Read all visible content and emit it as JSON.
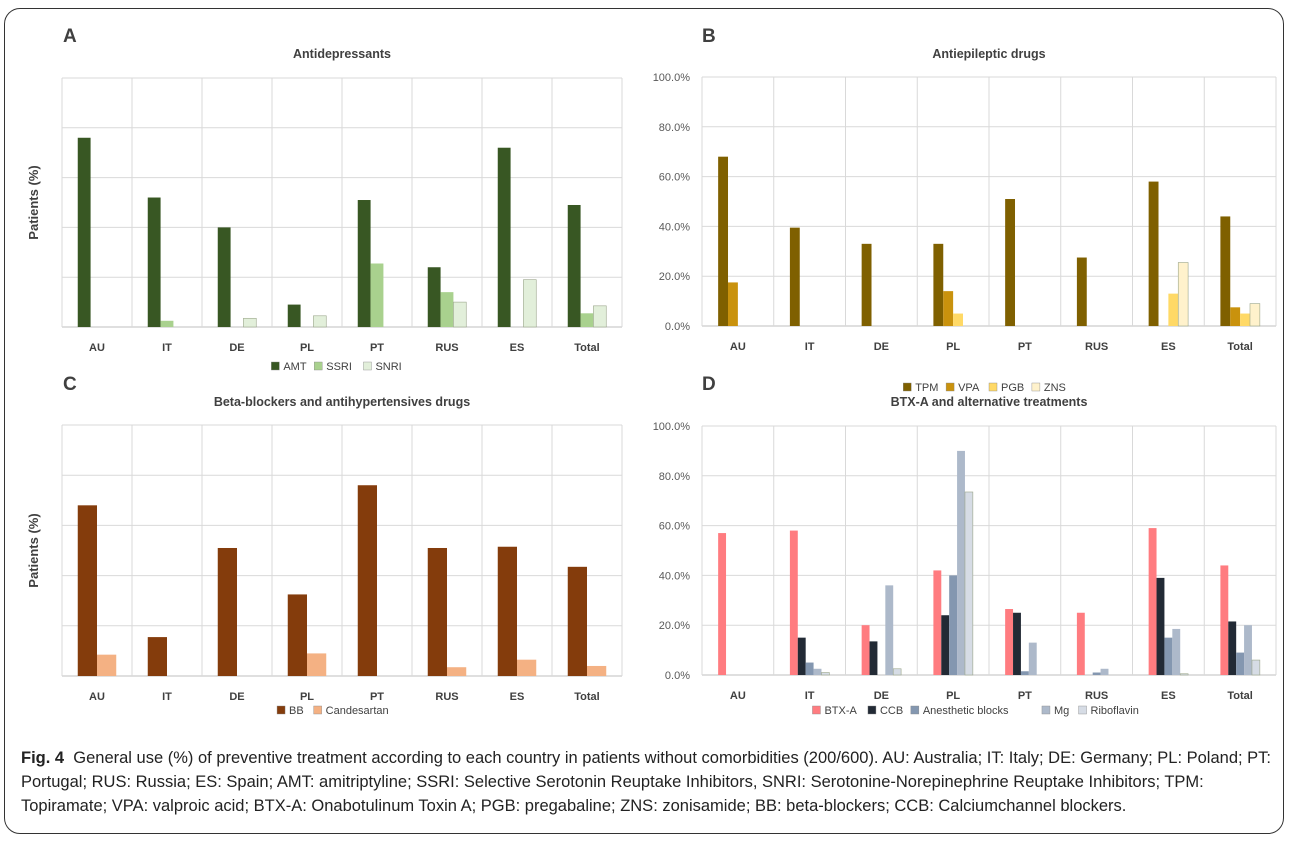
{
  "caption": {
    "label": "Fig. 4",
    "text": "General use (%) of preventive treatment according to each country in patients without comorbidities (200/600). AU: Australia; IT: Italy; DE: Germany; PL: Poland; PT: Portugal; RUS: Russia; ES: Spain; AMT: amitriptyline; SSRI: Selective Serotonin Reuptake Inhibitors, SNRI: Serotonine-Norepinephrine Reuptake Inhibitors; TPM: Topiramate; VPA: valproic acid; BTX-A: Onabotulinum Toxin A; PGB: pregabaline; ZNS: zonisamide; BB: beta-blockers; CCB: Calciumchannel blockers."
  },
  "chart_data": [
    {
      "panel": "A",
      "type": "bar",
      "title": "Antidepressants",
      "ylabel": "Patients (%)",
      "ylim": [
        0,
        100
      ],
      "grid": true,
      "y_tick_labels_visible": false,
      "categories": [
        "AU",
        "IT",
        "DE",
        "PL",
        "PT",
        "RUS",
        "ES",
        "Total"
      ],
      "legend_position": "bottom",
      "series": [
        {
          "name": "AMT",
          "color": "#385723",
          "values": [
            76,
            52,
            40,
            9,
            51,
            24,
            72,
            49
          ]
        },
        {
          "name": "SSRI",
          "color": "#a9d18e",
          "values": [
            0,
            2.5,
            0,
            0,
            25.5,
            14,
            0,
            5.5
          ]
        },
        {
          "name": "SNRI",
          "color": "#e2efda",
          "values": [
            0,
            0,
            3.5,
            4.5,
            0,
            10,
            19,
            8.5
          ]
        }
      ]
    },
    {
      "panel": "B",
      "type": "bar",
      "title": "Antiepileptic drugs",
      "ylabel": "",
      "ylim": [
        0,
        100
      ],
      "grid": true,
      "y_ticks": [
        "0.0%",
        "20.0%",
        "40.0%",
        "60.0%",
        "80.0%",
        "100.0%"
      ],
      "categories": [
        "AU",
        "IT",
        "DE",
        "PL",
        "PT",
        "RUS",
        "ES",
        "Total"
      ],
      "legend_position": "bottom",
      "series": [
        {
          "name": "TPM",
          "color": "#7f6000",
          "values": [
            68,
            39.5,
            33,
            33,
            51,
            27.5,
            58,
            44
          ]
        },
        {
          "name": "VPA",
          "color": "#c9920d",
          "values": [
            17.5,
            0,
            0,
            14,
            0,
            0,
            0,
            7.5
          ]
        },
        {
          "name": "PGB",
          "color": "#ffd966",
          "values": [
            0,
            0,
            0,
            5,
            0,
            0,
            13,
            5
          ]
        },
        {
          "name": "ZNS",
          "color": "#fff2cc",
          "values": [
            0,
            0,
            0,
            0,
            0,
            0,
            25.5,
            9
          ]
        }
      ]
    },
    {
      "panel": "C",
      "type": "bar",
      "title": "Beta-blockers and antihypertensives drugs",
      "ylabel": "Patients (%)",
      "ylim": [
        0,
        100
      ],
      "grid": true,
      "y_tick_labels_visible": false,
      "categories": [
        "AU",
        "IT",
        "DE",
        "PL",
        "PT",
        "RUS",
        "ES",
        "Total"
      ],
      "legend_position": "bottom",
      "series": [
        {
          "name": "BB",
          "color": "#843c0c",
          "values": [
            68,
            15.5,
            51,
            32.5,
            76,
            51,
            51.5,
            43.5
          ]
        },
        {
          "name": "Candesartan",
          "color": "#f4b183",
          "values": [
            8.5,
            0,
            0,
            9,
            0,
            3.5,
            6.5,
            4
          ]
        }
      ]
    },
    {
      "panel": "D",
      "type": "bar",
      "title": "BTX-A and alternative treatments",
      "ylabel": "",
      "ylim": [
        0,
        100
      ],
      "grid": true,
      "y_ticks": [
        "0.0%",
        "20.0%",
        "40.0%",
        "60.0%",
        "80.0%",
        "100.0%"
      ],
      "categories": [
        "AU",
        "IT",
        "DE",
        "PL",
        "PT",
        "RUS",
        "ES",
        "Total"
      ],
      "legend_position": "bottom",
      "series": [
        {
          "name": "BTX-A",
          "color": "#ff7c80",
          "values": [
            57,
            58,
            20,
            42,
            26.5,
            25,
            59,
            44
          ]
        },
        {
          "name": "CCB",
          "color": "#222a35",
          "values": [
            0,
            15,
            13.5,
            24,
            25,
            0,
            39,
            21.5
          ]
        },
        {
          "name": "Anesthetic blocks",
          "color": "#8497b0",
          "values": [
            0,
            5,
            0,
            40,
            1.5,
            1,
            15,
            9
          ]
        },
        {
          "name": "Mg",
          "color": "#adb9ca",
          "values": [
            0,
            2.5,
            36,
            90,
            13,
            2.5,
            18.5,
            20
          ]
        },
        {
          "name": "Riboflavin",
          "color": "#d6dce5",
          "values": [
            0,
            1,
            2.5,
            73.5,
            0,
            0,
            0.5,
            6
          ]
        }
      ]
    }
  ]
}
